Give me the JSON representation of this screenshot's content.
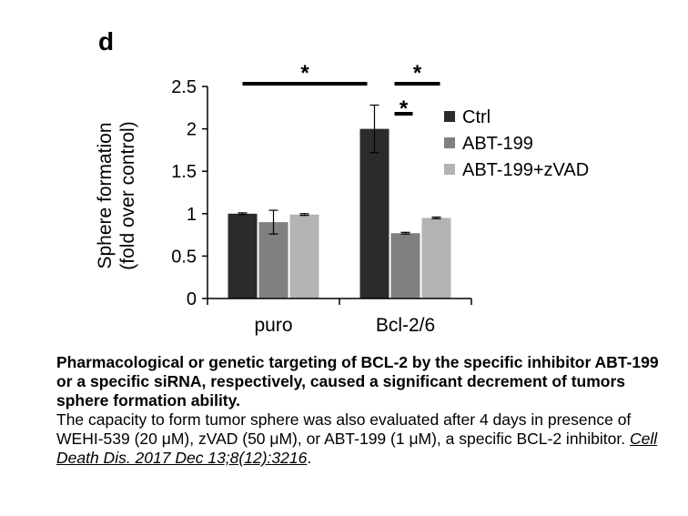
{
  "panel_label": "d",
  "chart_data": {
    "type": "bar",
    "categories": [
      "puro",
      "Bcl-2/6"
    ],
    "series": [
      {
        "name": "Ctrl",
        "values": [
          1.0,
          2.0
        ],
        "errors": [
          0.01,
          0.28
        ],
        "color": "#2b2b2b"
      },
      {
        "name": "ABT-199",
        "values": [
          0.9,
          0.77
        ],
        "errors": [
          0.14,
          0.01
        ],
        "color": "#808080"
      },
      {
        "name": "ABT-199+zVAD",
        "values": [
          0.99,
          0.95
        ],
        "errors": [
          0.01,
          0.01
        ],
        "color": "#b3b3b3"
      }
    ],
    "ylabel_line1": "Sphere formation",
    "ylabel_line2": "(fold over control)",
    "ylim": [
      0,
      2.5
    ],
    "yticks": [
      "0",
      "0.5",
      "1",
      "1.5",
      "2",
      "2.5"
    ],
    "yticks_values": [
      0,
      0.5,
      1,
      1.5,
      2,
      2.5
    ],
    "legend_position": "right",
    "significance_mark": "*"
  },
  "caption": {
    "bold_text": "Pharmacological or genetic targeting of BCL-2 by the specific inhibitor ABT-199 or a specific siRNA, respectively, caused a significant decrement of tumors sphere formation ability.",
    "body_text": "The capacity to form tumor sphere was also evaluated after 4 days in presence of WEHI-539 (20 μM), zVAD (50 μM), or ABT-199 (1 μM), a specific BCL-2 inhibitor. ",
    "citation": "Cell Death Dis. 2017 Dec 13;8(12):3216",
    "end_punct": "."
  }
}
